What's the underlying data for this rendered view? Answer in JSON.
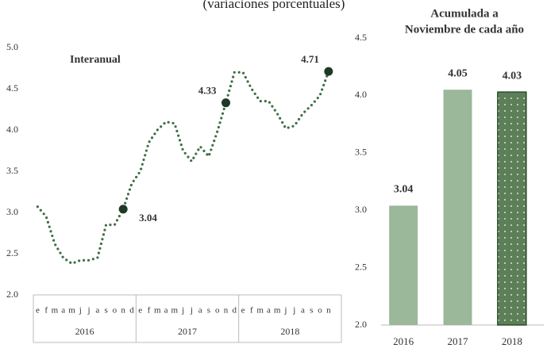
{
  "title": "(variaciones porcentuales)",
  "chart_data": [
    {
      "type": "line",
      "subtitle": "Interanual",
      "categories": [
        "e",
        "f",
        "m",
        "a",
        "m",
        "j",
        "j",
        "a",
        "s",
        "o",
        "n",
        "d",
        "e",
        "f",
        "m",
        "a",
        "m",
        "j",
        "j",
        "a",
        "s",
        "o",
        "n",
        "d",
        "e",
        "f",
        "m",
        "a",
        "m",
        "j",
        "j",
        "a",
        "s",
        "o",
        "n"
      ],
      "groups": [
        "2016",
        "2017",
        "2018"
      ],
      "group_sizes": [
        12,
        12,
        11
      ],
      "series": [
        {
          "name": "Interanual",
          "color": "#3f6e45",
          "values": [
            3.07,
            2.95,
            2.62,
            2.45,
            2.38,
            2.42,
            2.42,
            2.45,
            2.85,
            2.85,
            3.04,
            3.35,
            3.5,
            3.85,
            4.0,
            4.1,
            4.08,
            3.75,
            3.62,
            3.8,
            3.68,
            3.98,
            4.33,
            4.7,
            4.7,
            4.5,
            4.35,
            4.35,
            4.2,
            4.02,
            4.05,
            4.2,
            4.3,
            4.42,
            4.71
          ]
        }
      ],
      "highlights": [
        10,
        22,
        34
      ],
      "highlight_color": "#1e3a27",
      "ylim": [
        2,
        5
      ],
      "yticks": [
        {
          "value": 2,
          "label": "2.0"
        },
        2.5,
        {
          "value": 3,
          "label": "3.0"
        },
        3.5,
        {
          "value": 4,
          "label": "4.0"
        },
        4.5,
        {
          "value": 5,
          "label": "5.0"
        }
      ]
    },
    {
      "type": "bar",
      "title": [
        "Acumulada a",
        "Noviembre de cada año"
      ],
      "categories": [
        "2016",
        "2017",
        "2018"
      ],
      "values": [
        3.04,
        4.05,
        4.03
      ],
      "colors": [
        "#9bb89a",
        "#9bb89a",
        "#5c7f58"
      ],
      "dotted": [
        false,
        false,
        true
      ],
      "ylim": [
        2,
        4.5
      ],
      "yticks": [
        {
          "value": 2,
          "label": "2.0"
        },
        2.5,
        {
          "value": 3,
          "label": "3.0"
        },
        3.5,
        {
          "value": 4,
          "label": "4.0"
        },
        4.5
      ]
    }
  ]
}
